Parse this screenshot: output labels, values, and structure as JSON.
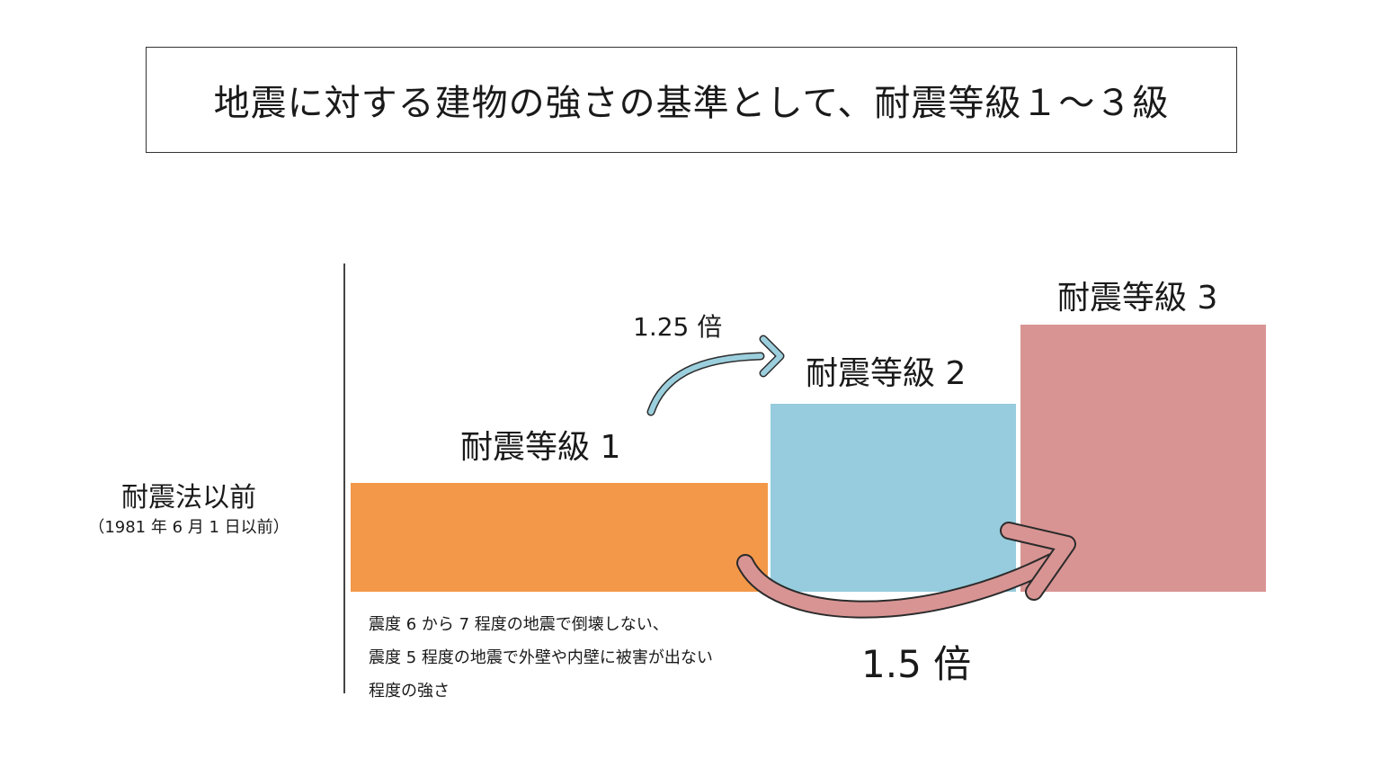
{
  "title": "地震に対する建物の強さの基準として、耐震等級１～３級",
  "before_law": {
    "label": "耐震法以前",
    "sublabel": "（1981 年 6 月 1 日以前）"
  },
  "grades": [
    {
      "label": "耐震等級 1",
      "color": "#f39849"
    },
    {
      "label": "耐震等級 2",
      "color": "#96ccdd"
    },
    {
      "label": "耐震等級 3",
      "color": "#d89493"
    }
  ],
  "ratios": {
    "grade2": "1.25 倍",
    "grade3": "1.5 倍"
  },
  "description": [
    "震度 6 から 7 程度の地震で倒壊しない、",
    "震度 5 程度の地震で外壁や内壁に被害が出ない",
    "程度の強さ"
  ],
  "arrow_colors": {
    "blue_arrow": "#9ccfdd",
    "pink_arrow": "#d89493"
  }
}
